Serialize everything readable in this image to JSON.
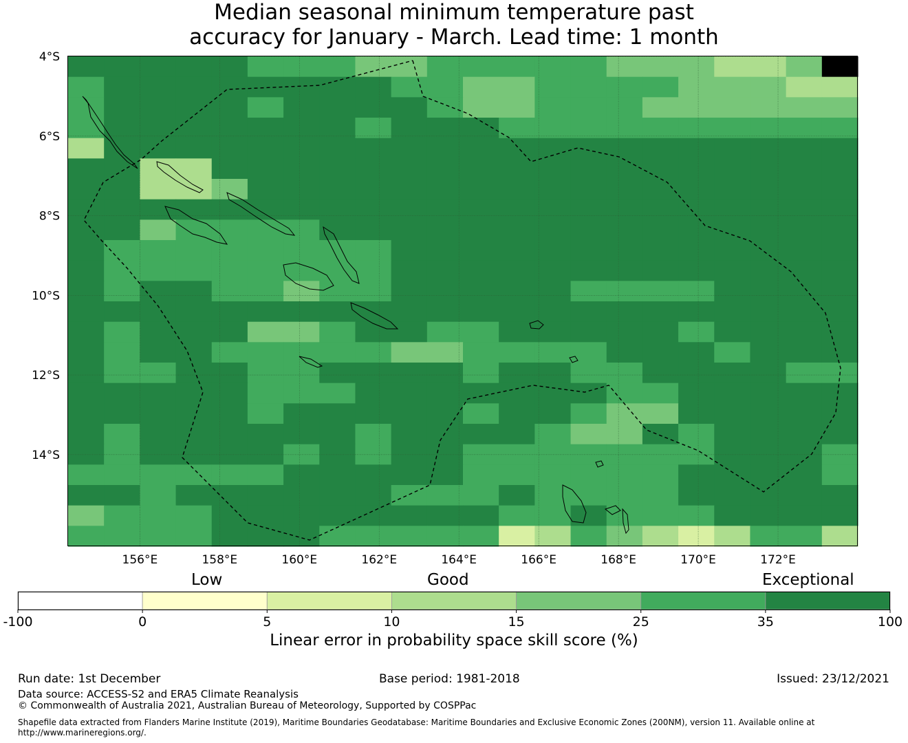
{
  "title_line1": "Median seasonal minimum temperature past",
  "title_line2": "accuracy for January - March. Lead time: 1 month",
  "chart_data": {
    "type": "heatmap",
    "x_ticks": [
      "156°E",
      "158°E",
      "160°E",
      "162°E",
      "164°E",
      "166°E",
      "168°E",
      "170°E",
      "172°E"
    ],
    "y_ticks": [
      "4°S",
      "6°S",
      "8°S",
      "10°S",
      "12°S",
      "14°S"
    ],
    "xlim": [
      154.2,
      174.0
    ],
    "ylim": [
      -16.3,
      -4.0
    ],
    "grid": true,
    "grid_rows": [
      "5555544433444443332236",
      "4555555554433444433322",
      "4555545555433444333333",
      "4555555545554444444444",
      "2555555555555555555555",
      "5522555555555555555555",
      "5522355555555555555555",
      "5555555555555555555555",
      "5534444555555555555555",
      "5444444445555555555555",
      "5444444445555555555555",
      "5455443445555544445555",
      "5555555555555555555555",
      "5455533455445555545555",
      "5455444443344445554555",
      "5445544555545544555544",
      "5555544455555554455555",
      "5555545555545543355555",
      "5455555545555433545555",
      "5455554545544444445554",
      "4444445555544444455554",
      "5545555554445444455555",
      "3444555555554454445555",
      "4444555444441243212442"
    ],
    "colorbar": {
      "boundaries": [
        "-100",
        "0",
        "5",
        "10",
        "15",
        "25",
        "35",
        "100"
      ],
      "colors": [
        "#ffffff",
        "#ffffcc",
        "#d9f0a3",
        "#addd8e",
        "#78c679",
        "#41ab5d",
        "#238443"
      ],
      "category_labels": [
        "Low",
        "Good",
        "Exceptional"
      ],
      "label": "Linear error in probability space skill score (%)"
    }
  },
  "footer": {
    "run_date": "Run date: 1st December",
    "base_period": "Base period: 1981-2018",
    "issued": "Issued: 23/12/2021",
    "data_source": "Data source: ACCESS-S2 and ERA5 Climate Reanalysis",
    "copyright": "© Commonwealth of Australia 2021, Australian Bureau of Meteorology, Supported by COSPPac",
    "shapefile": "Shapefile data extracted from Flanders Marine Institute (2019), Maritime Boundaries Geodatabase: Maritime Boundaries and Exclusive Economic Zones (200NM), version 11. Available online at http://www.marineregions.org/."
  }
}
